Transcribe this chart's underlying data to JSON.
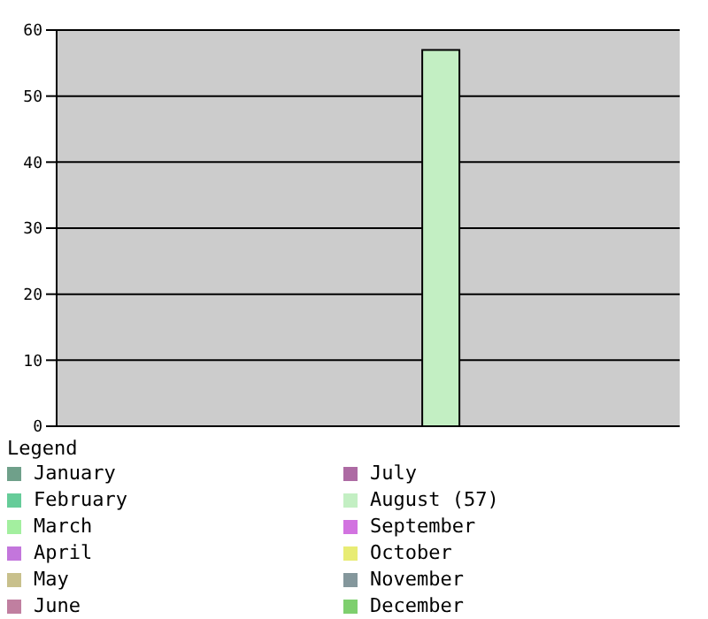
{
  "chart_data": {
    "type": "bar",
    "categories": [
      null
    ],
    "legend_title": "Legend",
    "legend": "bottom",
    "grid": "y",
    "tick_labels": "y",
    "ylim": [
      0,
      60
    ],
    "yticks": [
      0,
      10,
      20,
      30,
      40,
      50,
      60
    ],
    "series": [
      {
        "name": "January",
        "color": "#6fa08a",
        "values": [
          0
        ]
      },
      {
        "name": "February",
        "color": "#66cc99",
        "values": [
          0
        ]
      },
      {
        "name": "March",
        "color": "#a3ef9f",
        "values": [
          0
        ]
      },
      {
        "name": "April",
        "color": "#c376dc",
        "values": [
          0
        ]
      },
      {
        "name": "May",
        "color": "#c8c08c",
        "values": [
          0
        ]
      },
      {
        "name": "June",
        "color": "#c07fa0",
        "values": [
          0
        ]
      },
      {
        "name": "July",
        "color": "#ad6aa3",
        "values": [
          0
        ]
      },
      {
        "name": "August (57)",
        "color": "#c3efc3",
        "values": [
          57
        ]
      },
      {
        "name": "September",
        "color": "#d273e0",
        "values": [
          0
        ]
      },
      {
        "name": "October",
        "color": "#e8ec74",
        "values": [
          0
        ]
      },
      {
        "name": "November",
        "color": "#84979c",
        "values": [
          0
        ]
      },
      {
        "name": "December",
        "color": "#7ecf6e",
        "values": [
          0
        ]
      }
    ]
  }
}
